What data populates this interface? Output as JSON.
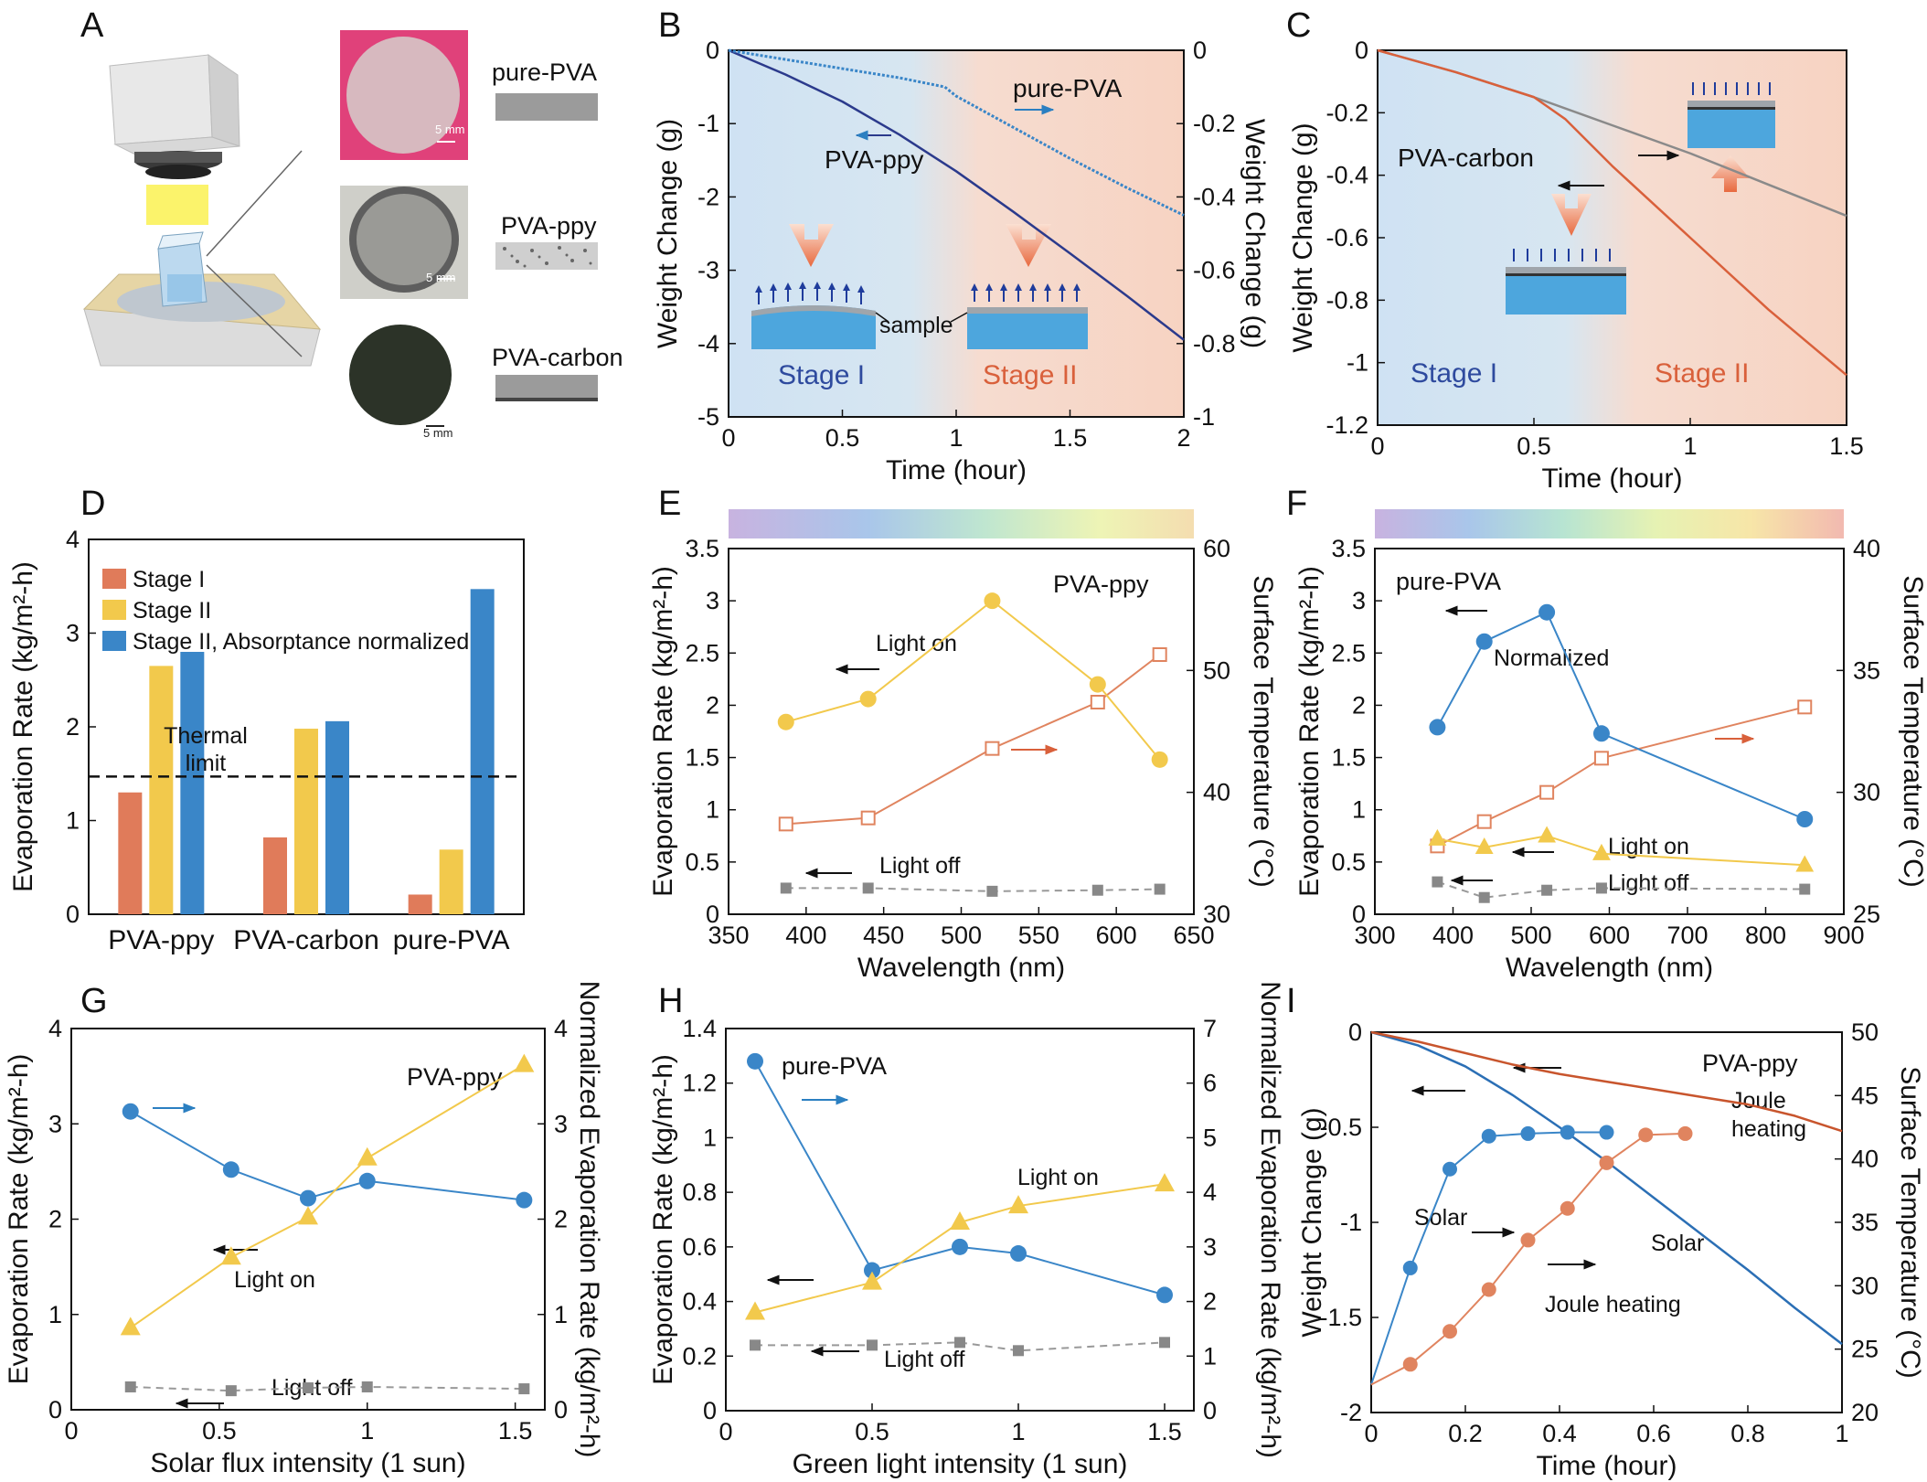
{
  "colors": {
    "orange": "#e07b5a",
    "yellow": "#f2c94c",
    "blue": "#3a86c8",
    "navy": "#2b3a8c",
    "gray": "#8a8a8a",
    "axis_blue": "#2b7fc1",
    "axis_orange": "#d9603b"
  },
  "panelA": {
    "label": "A",
    "samples": [
      "pure-PVA",
      "PVA-ppy",
      "PVA-carbon"
    ],
    "scale": [
      "5 mm",
      "5 mm",
      "5 mm"
    ]
  },
  "panelB": {
    "label": "B",
    "stage1": "Stage I",
    "stage2": "Stage II",
    "sample": "sample",
    "series_ppy": "PVA-ppy",
    "series_pure": "pure-PVA"
  },
  "panelC": {
    "label": "C",
    "stage1": "Stage I",
    "stage2": "Stage II",
    "series": "PVA-carbon"
  },
  "panelD": {
    "label": "D",
    "thermal": [
      "Thermal",
      "limit"
    ]
  },
  "panelE": {
    "label": "E",
    "title": "PVA-ppy",
    "light_on": "Light on",
    "light_off": "Light off"
  },
  "panelF": {
    "label": "F",
    "title": "pure-PVA",
    "normalized": "Normalized",
    "light_on": "Light on",
    "light_off": "Light off"
  },
  "panelG": {
    "label": "G",
    "title": "PVA-ppy",
    "light_on": "Light on",
    "light_off": "Light off"
  },
  "panelH": {
    "label": "H",
    "title": "pure-PVA",
    "light_on": "Light on",
    "light_off": "Light off"
  },
  "panelI": {
    "label": "I",
    "title": "PVA-ppy",
    "joule1": "Joule",
    "joule2": "heating",
    "solar_a": "Solar",
    "solar_b": "Solar",
    "joule_line": "Joule heating"
  },
  "chart_data": [
    {
      "panel": "B",
      "type": "line",
      "xlabel": "Time (hour)",
      "ylabel": "Weight Change (g)",
      "y2label": "Weight Change (g)",
      "xlim": [
        0,
        2
      ],
      "ylim": [
        -5,
        0
      ],
      "y2lim": [
        -1,
        0
      ],
      "xticks": [
        0,
        0.5,
        1,
        1.5,
        2
      ],
      "yticks": [
        0,
        -1,
        -2,
        -3,
        -4,
        -5
      ],
      "y2ticks": [
        0,
        -0.2,
        -0.4,
        -0.6,
        -0.8,
        -1
      ],
      "series": [
        {
          "name": "PVA-ppy",
          "axis": "left",
          "x": [
            0,
            0.25,
            0.5,
            0.75,
            1.0,
            1.25,
            1.5,
            1.75,
            2.0
          ],
          "y": [
            0,
            -0.33,
            -0.7,
            -1.15,
            -1.65,
            -2.2,
            -2.77,
            -3.35,
            -3.95
          ]
        },
        {
          "name": "pure-PVA",
          "axis": "right",
          "x": [
            0,
            0.25,
            0.5,
            0.75,
            0.95,
            1.0,
            1.25,
            1.5,
            1.75,
            2.0
          ],
          "y": [
            0,
            -0.025,
            -0.05,
            -0.075,
            -0.1,
            -0.125,
            -0.21,
            -0.295,
            -0.375,
            -0.45
          ]
        }
      ]
    },
    {
      "panel": "C",
      "type": "line",
      "xlabel": "Time (hour)",
      "ylabel": "Weight Change (g)",
      "xlim": [
        0,
        1.5
      ],
      "ylim": [
        -1.2,
        0
      ],
      "xticks": [
        0,
        0.5,
        1,
        1.5
      ],
      "yticks": [
        0,
        -0.2,
        -0.4,
        -0.6,
        -0.8,
        -1,
        -1.2
      ],
      "series": [
        {
          "name": "PVA-carbon",
          "color": "gray",
          "x": [
            0,
            0.25,
            0.5,
            0.75,
            1.0,
            1.25,
            1.5
          ],
          "y": [
            0,
            -0.07,
            -0.15,
            -0.24,
            -0.33,
            -0.43,
            -0.53
          ]
        },
        {
          "name": "PVA-carbon",
          "color": "orange",
          "x": [
            0,
            0.25,
            0.5,
            0.6,
            0.75,
            1.0,
            1.25,
            1.5
          ],
          "y": [
            0,
            -0.07,
            -0.15,
            -0.22,
            -0.37,
            -0.6,
            -0.83,
            -1.04
          ]
        }
      ]
    },
    {
      "panel": "D",
      "type": "bar",
      "ylabel": "Evaporation Rate (kg/m²-h)",
      "ylim": [
        0,
        4
      ],
      "yticks": [
        0,
        1,
        2,
        3,
        4
      ],
      "categories": [
        "PVA-ppy",
        "PVA-carbon",
        "pure-PVA"
      ],
      "series": [
        {
          "name": "Stage I",
          "values": [
            1.3,
            0.82,
            0.21
          ]
        },
        {
          "name": "Stage II",
          "values": [
            2.65,
            1.98,
            0.69
          ]
        },
        {
          "name": "Stage II, Absorptance normalized",
          "values": [
            2.8,
            2.06,
            3.47
          ]
        }
      ],
      "reference_line": 1.47
    },
    {
      "panel": "E",
      "type": "line",
      "xlabel": "Wavelength (nm)",
      "ylabel": "Evaporation Rate (kg/m²-h)",
      "y2label": "Surface Temperature (°C)",
      "xlim": [
        350,
        650
      ],
      "ylim": [
        0,
        3.5
      ],
      "y2lim": [
        30,
        60
      ],
      "xticks": [
        350,
        400,
        450,
        500,
        550,
        600,
        650
      ],
      "yticks": [
        0,
        0.5,
        1,
        1.5,
        2,
        2.5,
        3,
        3.5
      ],
      "y2ticks": [
        30,
        40,
        50,
        60
      ],
      "series": [
        {
          "name": "Light on",
          "axis": "left",
          "x": [
            387,
            440,
            520,
            588,
            628
          ],
          "y": [
            1.84,
            2.06,
            3.0,
            2.2,
            1.48
          ]
        },
        {
          "name": "Light off",
          "axis": "left",
          "x": [
            387,
            440,
            520,
            588,
            628
          ],
          "y": [
            0.25,
            0.25,
            0.22,
            0.23,
            0.24
          ]
        },
        {
          "axis": "right",
          "x": [
            387,
            440,
            520,
            588,
            628
          ],
          "y": [
            37.4,
            37.9,
            43.6,
            47.4,
            51.3
          ]
        }
      ]
    },
    {
      "panel": "F",
      "type": "line",
      "xlabel": "Wavelength (nm)",
      "ylabel": "Evaporation Rate (kg/m²-h)",
      "y2label": "Surface Temperature (°C)",
      "xlim": [
        300,
        900
      ],
      "ylim": [
        0,
        3.5
      ],
      "y2lim": [
        25,
        40
      ],
      "xticks": [
        300,
        400,
        500,
        600,
        700,
        800,
        900
      ],
      "yticks": [
        0,
        0.5,
        1,
        1.5,
        2,
        2.5,
        3,
        3.5
      ],
      "y2ticks": [
        25,
        30,
        35,
        40
      ],
      "series": [
        {
          "name": "Normalized",
          "axis": "left",
          "x": [
            380,
            440,
            520,
            590,
            850
          ],
          "y": [
            1.79,
            2.61,
            2.89,
            1.73,
            0.91
          ]
        },
        {
          "name": "Light on",
          "axis": "left",
          "x": [
            380,
            440,
            520,
            590,
            850
          ],
          "y": [
            0.72,
            0.64,
            0.75,
            0.58,
            0.47
          ]
        },
        {
          "name": "Light off",
          "axis": "left",
          "x": [
            380,
            440,
            520,
            590,
            850
          ],
          "y": [
            0.31,
            0.16,
            0.23,
            0.25,
            0.24
          ]
        },
        {
          "axis": "right",
          "x": [
            380,
            440,
            520,
            590,
            850
          ],
          "y": [
            27.8,
            28.8,
            30.0,
            31.4,
            33.5
          ]
        }
      ]
    },
    {
      "panel": "G",
      "type": "line",
      "xlabel": "Solar flux intensity (1 sun)",
      "ylabel": "Evaporation Rate (kg/m²-h)",
      "y2label": "Normalized Evaporation Rate (kg/m²-h)",
      "xlim": [
        0,
        1.6
      ],
      "ylim": [
        0,
        4
      ],
      "y2lim": [
        0,
        4
      ],
      "xticks": [
        0,
        0.5,
        1,
        1.5
      ],
      "yticks": [
        0,
        1,
        2,
        3,
        4
      ],
      "y2ticks": [
        0,
        1,
        2,
        3,
        4
      ],
      "series": [
        {
          "name": "Light on",
          "axis": "left",
          "x": [
            0.2,
            0.54,
            0.8,
            1.0,
            1.53
          ],
          "y": [
            0.86,
            1.6,
            2.02,
            2.64,
            3.62
          ]
        },
        {
          "name": "Light off",
          "axis": "left",
          "x": [
            0.2,
            0.54,
            0.8,
            1.0,
            1.53
          ],
          "y": [
            0.24,
            0.2,
            0.23,
            0.24,
            0.22
          ]
        },
        {
          "axis": "right",
          "x": [
            0.2,
            0.54,
            0.8,
            1.0,
            1.53
          ],
          "y": [
            3.13,
            2.52,
            2.22,
            2.4,
            2.2
          ]
        }
      ]
    },
    {
      "panel": "H",
      "type": "line",
      "xlabel": "Green light intensity (1 sun)",
      "ylabel": "Evaporation Rate (kg/m²-h)",
      "y2label": "Normalized Evaporation Rate (kg/m²-h)",
      "xlim": [
        0,
        1.6
      ],
      "ylim": [
        0,
        1.4
      ],
      "y2lim": [
        0,
        7
      ],
      "xticks": [
        0,
        0.5,
        1,
        1.5
      ],
      "yticks": [
        0,
        0.2,
        0.4,
        0.6,
        0.8,
        1,
        1.2,
        1.4
      ],
      "y2ticks": [
        0,
        1,
        2,
        3,
        4,
        5,
        6,
        7
      ],
      "series": [
        {
          "name": "Light on",
          "axis": "left",
          "x": [
            0.1,
            0.5,
            0.8,
            1.0,
            1.5
          ],
          "y": [
            0.36,
            0.47,
            0.69,
            0.75,
            0.83
          ]
        },
        {
          "name": "Light off",
          "axis": "left",
          "x": [
            0.1,
            0.5,
            0.8,
            1.0,
            1.5
          ],
          "y": [
            0.24,
            0.24,
            0.25,
            0.22,
            0.25
          ]
        },
        {
          "axis": "right",
          "x": [
            0.1,
            0.5,
            0.8,
            1.0,
            1.5
          ],
          "y": [
            6.4,
            2.57,
            3.0,
            2.88,
            2.12
          ]
        }
      ]
    },
    {
      "panel": "I",
      "type": "line",
      "xlabel": "Time (hour)",
      "ylabel": "Weight Change (g)",
      "y2label": "Surface Temperature (°C)",
      "xlim": [
        0,
        1
      ],
      "ylim": [
        -2,
        0
      ],
      "y2lim": [
        20,
        50
      ],
      "xticks": [
        0,
        0.2,
        0.4,
        0.6,
        0.8,
        1
      ],
      "yticks": [
        0,
        -0.5,
        -1,
        -1.5,
        -2
      ],
      "y2ticks": [
        20,
        25,
        30,
        35,
        40,
        45,
        50
      ],
      "series": [
        {
          "name": "Solar",
          "axis": "left",
          "x": [
            0,
            0.1,
            0.2,
            0.3,
            0.4,
            0.5,
            0.6,
            0.7,
            0.8,
            0.9,
            1.0
          ],
          "y": [
            0,
            -0.07,
            -0.18,
            -0.33,
            -0.5,
            -0.68,
            -0.87,
            -1.06,
            -1.25,
            -1.45,
            -1.64
          ]
        },
        {
          "name": "Joule heating",
          "axis": "left",
          "x": [
            0,
            0.1,
            0.2,
            0.3,
            0.4,
            0.5,
            0.6,
            0.7,
            0.8,
            0.9,
            1.0
          ],
          "y": [
            0,
            -0.05,
            -0.11,
            -0.17,
            -0.22,
            -0.26,
            -0.3,
            -0.34,
            -0.38,
            -0.44,
            -0.52
          ]
        },
        {
          "name": "Solar",
          "axis": "right",
          "x": [
            0,
            0.083,
            0.167,
            0.25,
            0.333,
            0.417,
            0.5
          ],
          "y": [
            22.2,
            31.4,
            39.2,
            41.8,
            42.0,
            42.1,
            42.1
          ]
        },
        {
          "name": "Joule heating",
          "axis": "right",
          "x": [
            0,
            0.083,
            0.167,
            0.25,
            0.333,
            0.417,
            0.5,
            0.583,
            0.667
          ],
          "y": [
            22.2,
            23.8,
            26.4,
            29.7,
            33.6,
            36.1,
            39.7,
            41.9,
            42.0
          ]
        }
      ]
    }
  ]
}
